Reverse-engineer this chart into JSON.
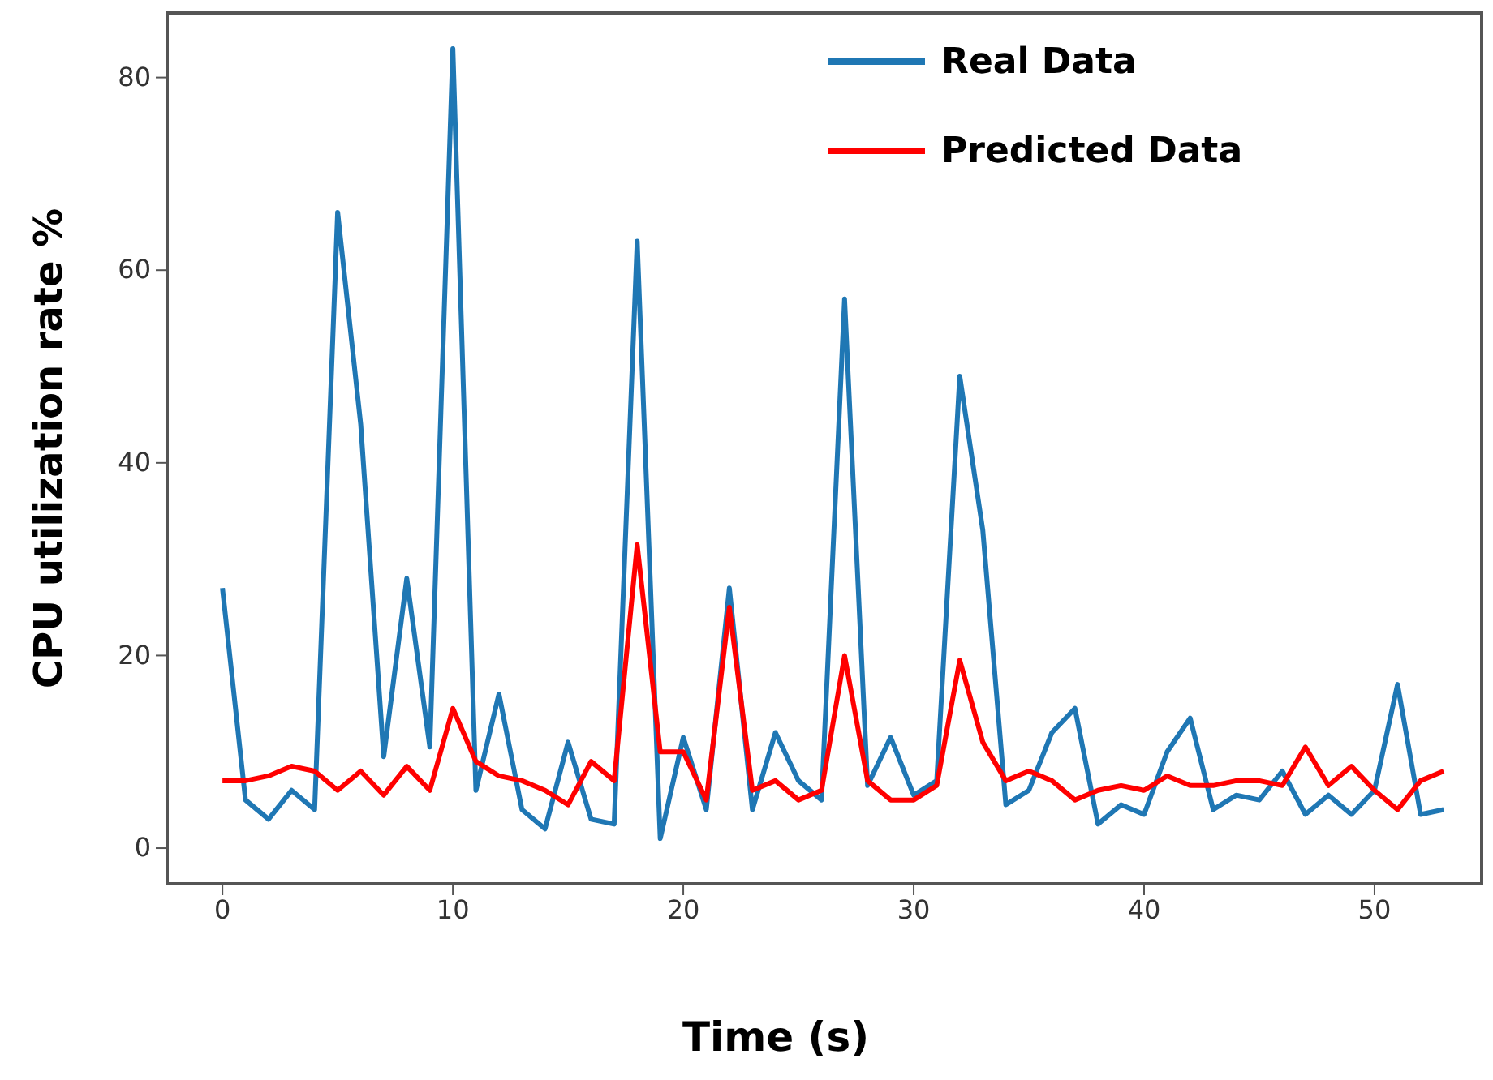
{
  "chart_data": {
    "type": "line",
    "xlabel": "Time (s)",
    "ylabel": "CPU utilization rate %",
    "x": [
      0,
      1,
      2,
      3,
      4,
      5,
      6,
      7,
      8,
      9,
      10,
      11,
      12,
      13,
      14,
      15,
      16,
      17,
      18,
      19,
      20,
      21,
      22,
      23,
      24,
      25,
      26,
      27,
      28,
      29,
      30,
      31,
      32,
      33,
      34,
      35,
      36,
      37,
      38,
      39,
      40,
      41,
      42,
      43,
      44,
      45,
      46,
      47,
      48,
      49,
      50,
      51,
      52,
      53
    ],
    "series": [
      {
        "name": "Real Data",
        "color": "#1f77b4",
        "values": [
          27,
          5,
          3,
          6,
          4,
          66,
          44,
          9.5,
          28,
          10.5,
          83,
          6,
          16,
          4,
          2,
          11,
          3,
          2.5,
          63,
          1,
          11.5,
          4,
          27,
          4,
          12,
          7,
          5,
          57,
          6.5,
          11.5,
          5.5,
          7,
          49,
          33,
          4.5,
          6,
          12,
          14.5,
          2.5,
          4.5,
          3.5,
          10,
          13.5,
          4,
          5.5,
          5,
          8,
          3.5,
          5.5,
          3.5,
          6,
          17,
          3.5,
          4
        ]
      },
      {
        "name": "Predicted Data",
        "color": "#ff0000",
        "values": [
          7,
          7,
          7.5,
          8.5,
          8,
          6,
          8,
          5.5,
          8.5,
          6,
          14.5,
          9,
          7.5,
          7,
          6,
          4.5,
          9,
          7,
          31.5,
          10,
          10,
          5,
          25,
          6,
          7,
          5,
          6,
          20,
          7,
          5,
          5,
          6.5,
          19.5,
          11,
          7,
          8,
          7,
          5,
          6,
          6.5,
          6,
          7.5,
          6.5,
          6.5,
          7,
          7,
          6.5,
          10.5,
          6.5,
          8.5,
          6,
          4,
          7,
          8
        ]
      }
    ],
    "xlim": [
      -2.4,
      54.65
    ],
    "ylim": [
      -3.7,
      86.7
    ],
    "xticks": [
      0,
      10,
      20,
      30,
      40,
      50
    ],
    "yticks": [
      0,
      20,
      40,
      60,
      80
    ],
    "grid": false,
    "legend": "top right",
    "line_style": "solid",
    "marker": "none"
  }
}
